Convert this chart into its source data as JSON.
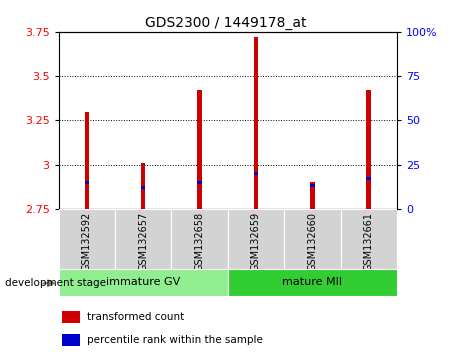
{
  "title": "GDS2300 / 1449178_at",
  "samples": [
    "GSM132592",
    "GSM132657",
    "GSM132658",
    "GSM132659",
    "GSM132660",
    "GSM132661"
  ],
  "bar_bottom": 2.75,
  "transformed_counts": [
    3.3,
    3.01,
    3.42,
    3.72,
    2.9,
    3.42
  ],
  "percentile_rank_values": [
    15,
    12,
    15,
    20,
    13,
    17
  ],
  "ylim": [
    2.75,
    3.75
  ],
  "yticks": [
    2.75,
    3.0,
    3.25,
    3.5,
    3.75
  ],
  "right_yticks": [
    0,
    25,
    50,
    75,
    100
  ],
  "groups": [
    {
      "label": "immature GV",
      "samples": [
        0,
        1,
        2
      ],
      "color": "#90ee90"
    },
    {
      "label": "mature MII",
      "samples": [
        3,
        4,
        5
      ],
      "color": "#32cd32"
    }
  ],
  "group_label": "development stage",
  "bar_color_red": "#cc0000",
  "bar_color_blue": "#0000cc",
  "bar_width": 0.08,
  "grid_color": "#000000",
  "bg_xticklabel": "#d3d3d3",
  "legend_items": [
    "transformed count",
    "percentile rank within the sample"
  ]
}
